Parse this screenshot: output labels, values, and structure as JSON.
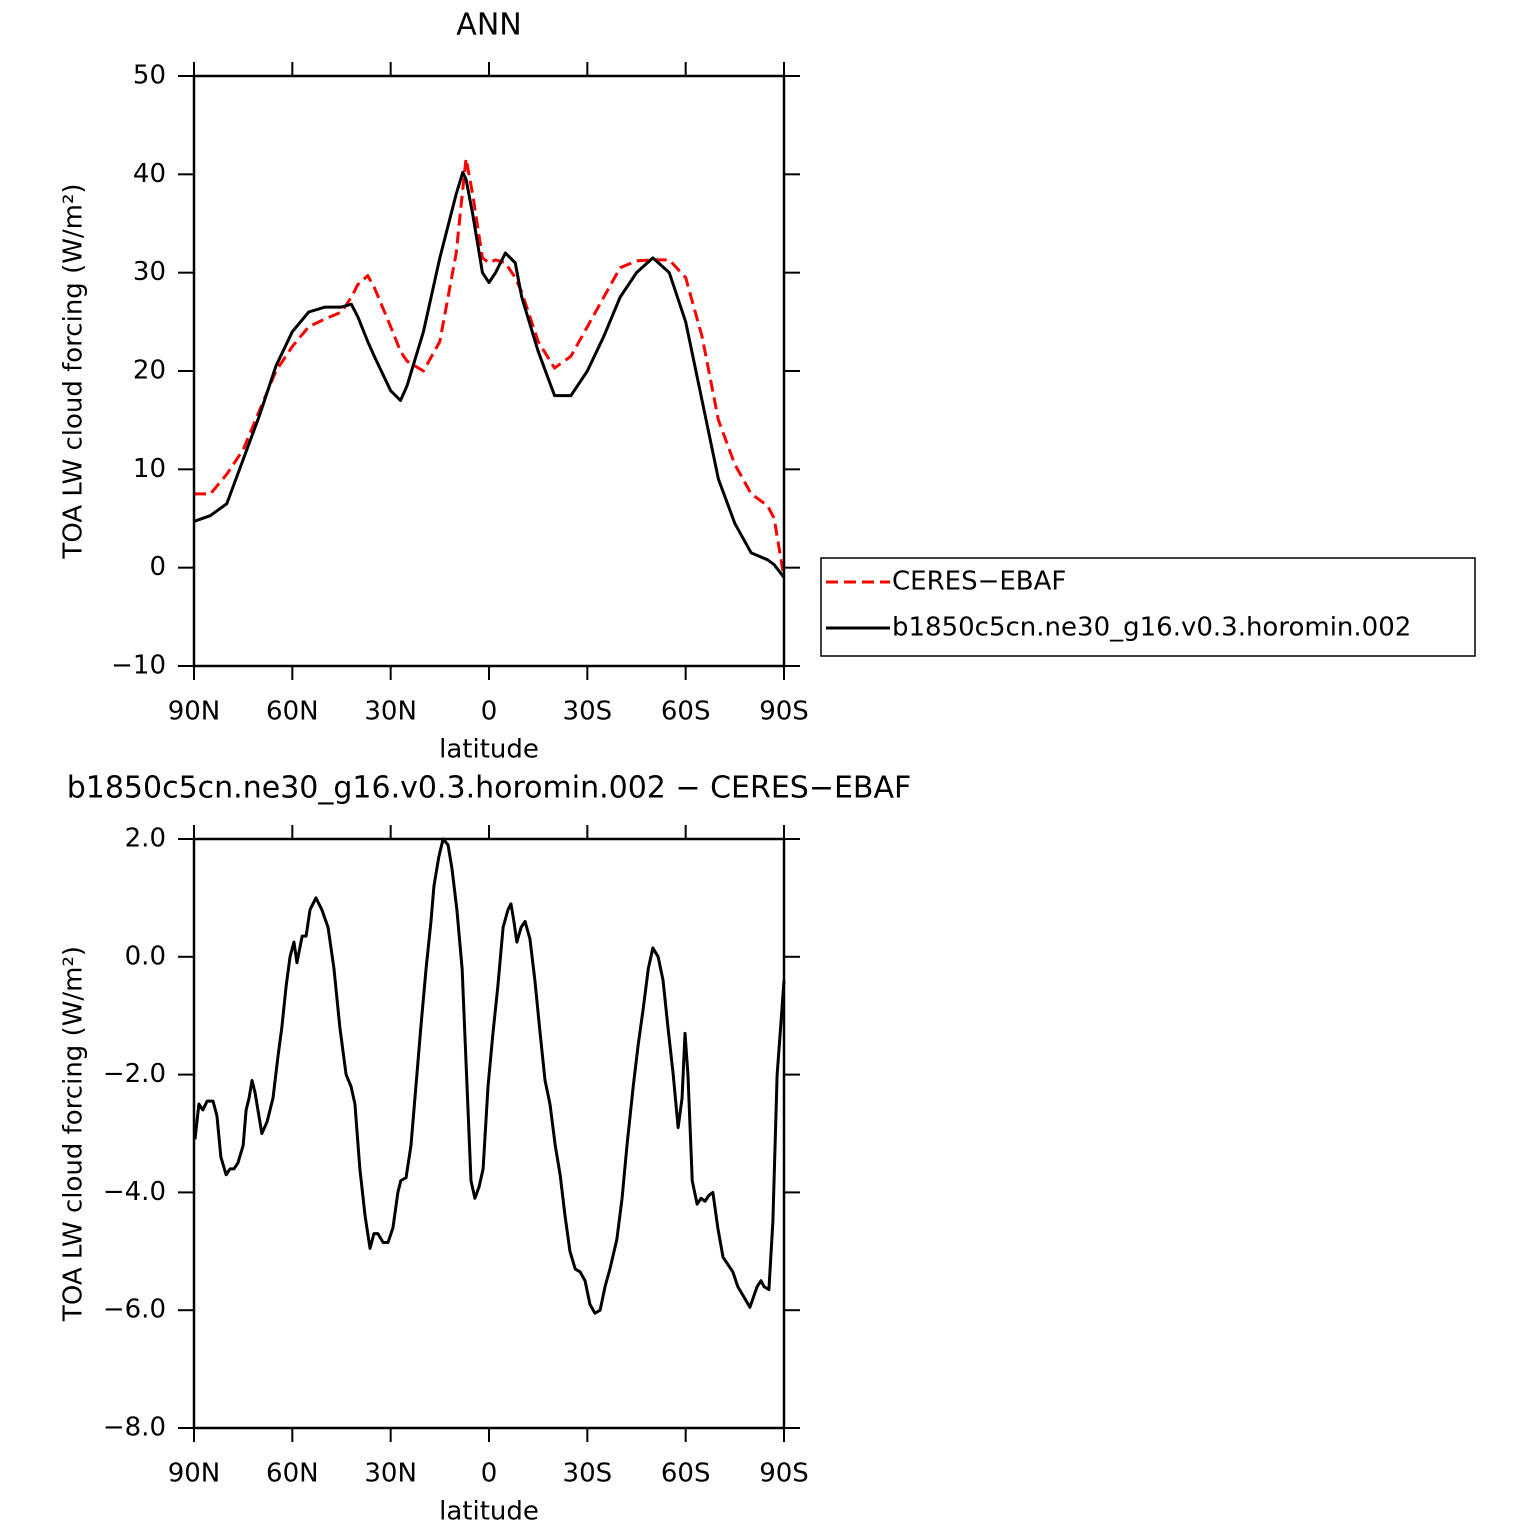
{
  "chart_data": [
    {
      "type": "line",
      "title": "ANN",
      "xlabel": "latitude",
      "ylabel": "TOA LW cloud forcing (W/m²)",
      "x": [
        90,
        85,
        80,
        75,
        70,
        65,
        60,
        55,
        50,
        45,
        42,
        40,
        37,
        35,
        30,
        27,
        25,
        20,
        15,
        10,
        8,
        7,
        5,
        2,
        0,
        -2,
        -5,
        -8,
        -10,
        -15,
        -20,
        -25,
        -30,
        -35,
        -40,
        -45,
        -50,
        -55,
        -60,
        -65,
        -70,
        -75,
        -80,
        -85,
        -87,
        -90
      ],
      "series": [
        {
          "name": "CERES−EBAF",
          "color": "#ff0000",
          "linestyle": "dashed",
          "values": [
            7.5,
            7.5,
            9.5,
            12,
            16,
            20,
            22.5,
            24.5,
            25.3,
            26,
            27.5,
            28.8,
            29.7,
            28.5,
            24.5,
            22,
            21,
            20,
            23,
            32,
            38.5,
            41.6,
            38,
            31.5,
            31,
            31.3,
            31,
            29.5,
            28,
            23,
            20.3,
            21.5,
            24.5,
            27.5,
            30.5,
            31.2,
            31.3,
            31.3,
            29.5,
            23.5,
            15,
            10.5,
            7.5,
            6.3,
            5,
            -1
          ]
        },
        {
          "name": "b1850c5cn.ne30_g16.v0.3.horomin.002",
          "color": "#000000",
          "linestyle": "solid",
          "values": [
            4.7,
            5.3,
            6.5,
            11,
            15.5,
            20.5,
            24,
            26,
            26.5,
            26.5,
            26.8,
            25.5,
            23,
            21.5,
            18,
            17,
            18.5,
            24,
            31.5,
            38,
            40.2,
            39.5,
            36,
            30,
            29,
            30,
            32,
            31,
            27.5,
            22,
            17.5,
            17.5,
            20,
            23.5,
            27.5,
            30,
            31.5,
            30,
            25,
            17,
            9,
            4.5,
            1.5,
            0.8,
            0.3,
            -1
          ]
        }
      ],
      "xlim": [
        90,
        -90
      ],
      "xticks": [
        {
          "value": 90,
          "label": "90N"
        },
        {
          "value": 60,
          "label": "60N"
        },
        {
          "value": 30,
          "label": "30N"
        },
        0,
        {
          "value": -30,
          "label": "30S"
        },
        {
          "value": -60,
          "label": "60S"
        },
        {
          "value": -90,
          "label": "90S"
        }
      ],
      "ylim": [
        -10,
        50
      ],
      "yticks": [
        {
          "value": -10,
          "label": "−10"
        },
        0,
        10,
        20,
        30,
        40,
        50
      ],
      "legend": "right"
    },
    {
      "type": "line",
      "title": "b1850c5cn.ne30_g16.v0.3.horomin.002 − CERES−EBAF",
      "xlabel": "latitude",
      "ylabel": "TOA LW cloud forcing (W/m²)",
      "x": [
        89.7,
        88.5,
        87.3,
        86,
        84.2,
        83,
        81.8,
        80.2,
        79,
        77.8,
        76.6,
        75,
        74.1,
        73.2,
        72.3,
        71.4,
        69.3,
        67.7,
        65.9,
        64.4,
        63.2,
        61.9,
        60.7,
        59.5,
        58.6,
        57,
        55.8,
        54.6,
        52.8,
        51,
        49.1,
        47.3,
        45.5,
        43.6,
        42.1,
        40.9,
        39.4,
        37.8,
        36.3,
        35.1,
        33.9,
        32.3,
        30.8,
        29.3,
        27.8,
        26.9,
        25.3,
        23.8,
        22.3,
        20.8,
        19.2,
        17.7,
        16.8,
        15.3,
        14,
        12.5,
        11.3,
        9.8,
        8.2,
        6.7,
        5.5,
        4.3,
        3,
        1.8,
        0.3,
        -1.2,
        -2.7,
        -4.3,
        -5.8,
        -6.7,
        -7.6,
        -8.5,
        -9.8,
        -11,
        -12.5,
        -14,
        -15.6,
        -17.1,
        -18.6,
        -20.2,
        -21.7,
        -23.2,
        -24.7,
        -26.3,
        -27.8,
        -29.3,
        -30.8,
        -32.3,
        -33.9,
        -35.4,
        -36.9,
        -39,
        -40.6,
        -42.1,
        -44,
        -45.5,
        -47,
        -48.6,
        -50,
        -51.6,
        -53.1,
        -54.6,
        -56.2,
        -57.7,
        -58.9,
        -59.8,
        -60.7,
        -62,
        -63.5,
        -64.7,
        -65.9,
        -67.1,
        -68.3,
        -69.8,
        -71.4,
        -72.6,
        -74.4,
        -75.9,
        -77.5,
        -79.6,
        -81.8,
        -83,
        -83.9,
        -85.4,
        -86.6,
        -87.9,
        -89.1,
        -90
      ],
      "series": [
        {
          "color": "#000000",
          "linestyle": "solid",
          "values": [
            -3.1,
            -2.5,
            -2.6,
            -2.45,
            -2.45,
            -2.7,
            -3.4,
            -3.7,
            -3.6,
            -3.6,
            -3.5,
            -3.2,
            -2.6,
            -2.4,
            -2.1,
            -2.3,
            -3.0,
            -2.8,
            -2.4,
            -1.7,
            -1.2,
            -0.5,
            0.0,
            0.25,
            -0.1,
            0.35,
            0.35,
            0.8,
            1.0,
            0.8,
            0.5,
            -0.2,
            -1.2,
            -2.0,
            -2.2,
            -2.5,
            -3.6,
            -4.4,
            -4.95,
            -4.7,
            -4.7,
            -4.85,
            -4.85,
            -4.6,
            -4.0,
            -3.8,
            -3.75,
            -3.2,
            -2.2,
            -1.2,
            -0.2,
            0.6,
            1.2,
            1.7,
            2.0,
            1.9,
            1.5,
            0.8,
            -0.2,
            -2.2,
            -3.8,
            -4.1,
            -3.9,
            -3.6,
            -2.2,
            -1.3,
            -0.5,
            0.5,
            0.8,
            0.9,
            0.6,
            0.25,
            0.5,
            0.6,
            0.3,
            -0.4,
            -1.3,
            -2.1,
            -2.5,
            -3.2,
            -3.7,
            -4.4,
            -5.0,
            -5.3,
            -5.35,
            -5.5,
            -5.9,
            -6.05,
            -6.0,
            -5.6,
            -5.3,
            -4.8,
            -4.1,
            -3.2,
            -2.2,
            -1.5,
            -0.9,
            -0.2,
            0.15,
            0.0,
            -0.4,
            -1.2,
            -2.0,
            -2.9,
            -2.4,
            -1.3,
            -2.0,
            -3.8,
            -4.2,
            -4.1,
            -4.15,
            -4.05,
            -4.0,
            -4.6,
            -5.1,
            -5.2,
            -5.35,
            -5.6,
            -5.75,
            -5.95,
            -5.6,
            -5.5,
            -5.6,
            -5.65,
            -4.5,
            -2.0,
            -1.1,
            -0.4
          ]
        }
      ],
      "xlim": [
        90,
        -90
      ],
      "xticks": [
        {
          "value": 90,
          "label": "90N"
        },
        {
          "value": 60,
          "label": "60N"
        },
        {
          "value": 30,
          "label": "30N"
        },
        0,
        {
          "value": -30,
          "label": "30S"
        },
        {
          "value": -60,
          "label": "60S"
        },
        {
          "value": -90,
          "label": "90S"
        }
      ],
      "ylim": [
        -8,
        2
      ],
      "yticks": [
        {
          "value": -8,
          "label": "−8.0"
        },
        {
          "value": -6,
          "label": "−6.0"
        },
        {
          "value": -4,
          "label": "−4.0"
        },
        {
          "value": -2,
          "label": "−2.0"
        },
        {
          "value": 0,
          "label": "0.0"
        },
        {
          "value": 2,
          "label": "2.0"
        }
      ]
    }
  ]
}
